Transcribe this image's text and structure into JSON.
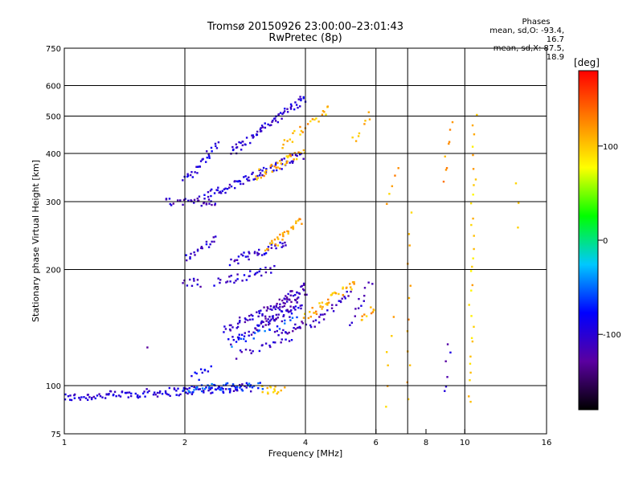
{
  "chart_data": {
    "type": "scatter",
    "title": "Tromsø 20150926 23:00:00–23:01:43",
    "subtitle": "RwPretec (8p)",
    "xlabel": "Frequency [MHz]",
    "ylabel": "Stationary phase Virtual Height [km]",
    "x_scale": "log",
    "y_scale": "log",
    "xlim": [
      1,
      16
    ],
    "ylim": [
      75,
      750
    ],
    "x_ticks": [
      1,
      2,
      4,
      6,
      8,
      10,
      16
    ],
    "y_ticks": [
      75,
      100,
      200,
      300,
      400,
      500,
      600,
      750
    ],
    "x_grid": [
      2,
      4,
      6,
      7.2,
      10
    ],
    "y_grid": [
      100,
      200,
      300,
      400,
      500,
      600
    ],
    "stats": {
      "header": "Phases",
      "o_mode": "mean, sd,O: -93.4, 16.7",
      "x_mode": "mean, sd,X: 87.5, 18.9"
    },
    "colorbar": {
      "label": "[deg]",
      "ticks": [
        100,
        0,
        -100
      ],
      "range": [
        -180,
        180
      ],
      "colors": [
        "#000000",
        "#5a00a0",
        "#0000ff",
        "#00c8ff",
        "#00ff00",
        "#ffff00",
        "#ff8000",
        "#ff0000"
      ]
    },
    "traces": [
      {
        "f0": 1.0,
        "f1": 2.9,
        "h0": 93,
        "h1": 99,
        "phase": -100,
        "n": 130
      },
      {
        "f0": 2.0,
        "f1": 3.1,
        "h0": 98,
        "h1": 100,
        "phase": -60,
        "n": 50
      },
      {
        "f0": 3.1,
        "f1": 3.5,
        "h0": 98,
        "h1": 97,
        "phase": 100,
        "n": 16
      },
      {
        "f0": 2.1,
        "f1": 2.3,
        "h0": 105,
        "h1": 110,
        "phase": -90,
        "n": 10
      },
      {
        "f0": 2.5,
        "f1": 4.0,
        "h0": 140,
        "h1": 175,
        "phase": -110,
        "n": 60
      },
      {
        "f0": 2.6,
        "f1": 3.9,
        "h0": 130,
        "h1": 160,
        "phase": -100,
        "n": 45
      },
      {
        "f0": 2.6,
        "f1": 3.8,
        "h0": 128,
        "h1": 150,
        "phase": -60,
        "n": 20
      },
      {
        "f0": 3.4,
        "f1": 4.0,
        "h0": 135,
        "h1": 145,
        "phase": -110,
        "n": 20
      },
      {
        "f0": 2.7,
        "f1": 3.7,
        "h0": 120,
        "h1": 132,
        "phase": -105,
        "n": 20
      },
      {
        "f0": 3.0,
        "f1": 3.9,
        "h0": 140,
        "h1": 165,
        "phase": -115,
        "n": 25
      },
      {
        "f0": 3.2,
        "f1": 4.0,
        "h0": 150,
        "h1": 185,
        "phase": -110,
        "n": 30
      },
      {
        "f0": 4.0,
        "f1": 5.3,
        "h0": 150,
        "h1": 185,
        "phase": 110,
        "n": 40
      },
      {
        "f0": 4.1,
        "f1": 5.2,
        "h0": 140,
        "h1": 175,
        "phase": -110,
        "n": 25
      },
      {
        "f0": 5.2,
        "f1": 5.8,
        "h0": 145,
        "h1": 185,
        "phase": -110,
        "n": 12
      },
      {
        "f0": 5.5,
        "f1": 6.0,
        "h0": 150,
        "h1": 160,
        "phase": 110,
        "n": 10
      },
      {
        "f0": 2.4,
        "f1": 3.3,
        "h0": 185,
        "h1": 200,
        "phase": -100,
        "n": 30
      },
      {
        "f0": 2.0,
        "f1": 2.2,
        "h0": 185,
        "h1": 185,
        "phase": -110,
        "n": 10
      },
      {
        "f0": 2.6,
        "f1": 3.6,
        "h0": 210,
        "h1": 235,
        "phase": -100,
        "n": 40
      },
      {
        "f0": 3.2,
        "f1": 3.9,
        "h0": 225,
        "h1": 270,
        "phase": 110,
        "n": 30
      },
      {
        "f0": 2.0,
        "f1": 2.4,
        "h0": 215,
        "h1": 240,
        "phase": -100,
        "n": 20
      },
      {
        "f0": 1.8,
        "f1": 2.4,
        "h0": 300,
        "h1": 300,
        "phase": -110,
        "n": 30
      },
      {
        "f0": 2.2,
        "f1": 3.9,
        "h0": 305,
        "h1": 395,
        "phase": -100,
        "n": 80
      },
      {
        "f0": 3.0,
        "f1": 3.95,
        "h0": 350,
        "h1": 400,
        "phase": 110,
        "n": 35
      },
      {
        "f0": 2.0,
        "f1": 2.4,
        "h0": 340,
        "h1": 420,
        "phase": -100,
        "n": 30
      },
      {
        "f0": 2.6,
        "f1": 4.0,
        "h0": 400,
        "h1": 560,
        "phase": -100,
        "n": 70
      },
      {
        "f0": 3.5,
        "f1": 4.6,
        "h0": 420,
        "h1": 520,
        "phase": 110,
        "n": 25
      },
      {
        "f0": 5.2,
        "f1": 5.8,
        "h0": 430,
        "h1": 500,
        "phase": 110,
        "n": 8
      },
      {
        "f0": 6.3,
        "f1": 6.9,
        "h0": 300,
        "h1": 360,
        "phase": 110,
        "n": 5
      },
      {
        "f0": 8.9,
        "f1": 9.2,
        "h0": 340,
        "h1": 480,
        "phase": 120,
        "n": 8
      },
      {
        "f0": 10.3,
        "f1": 10.6,
        "h0": 90,
        "h1": 500,
        "phase": 100,
        "n": 30
      },
      {
        "f0": 7.2,
        "f1": 7.3,
        "h0": 90,
        "h1": 280,
        "phase": 110,
        "n": 12
      },
      {
        "f0": 9.0,
        "f1": 9.1,
        "h0": 95,
        "h1": 130,
        "phase": -110,
        "n": 6
      },
      {
        "f0": 13.5,
        "f1": 13.5,
        "h0": 260,
        "h1": 340,
        "phase": 100,
        "n": 3
      },
      {
        "f0": 1.6,
        "f1": 1.6,
        "h0": 125,
        "h1": 125,
        "phase": -110,
        "n": 1
      },
      {
        "f0": 6.3,
        "f1": 6.6,
        "h0": 90,
        "h1": 150,
        "phase": 100,
        "n": 6
      }
    ]
  }
}
